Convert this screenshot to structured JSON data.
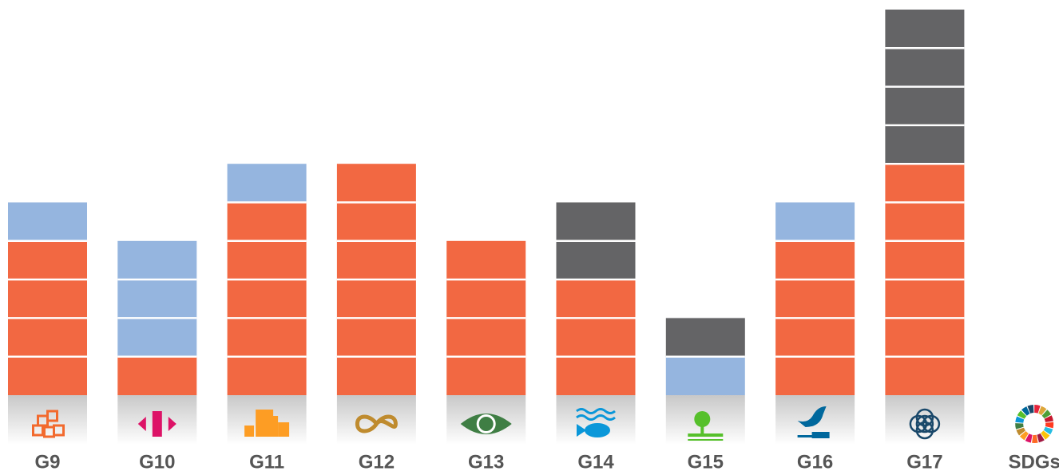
{
  "chart_data": {
    "type": "bar",
    "stacked": true,
    "categories": [
      "G9",
      "G10",
      "G11",
      "G12",
      "G13",
      "G14",
      "G15",
      "G16",
      "G17",
      "SDGs"
    ],
    "series": [
      {
        "color": "#f26842",
        "values": [
          4,
          1,
          5,
          6,
          4,
          3,
          0,
          4,
          6,
          0
        ]
      },
      {
        "color": "#95b5df",
        "values": [
          1,
          3,
          1,
          0,
          0,
          0,
          1,
          1,
          0,
          0
        ]
      },
      {
        "color": "#646466",
        "values": [
          0,
          0,
          0,
          0,
          0,
          2,
          1,
          0,
          4,
          0
        ]
      }
    ]
  }
}
